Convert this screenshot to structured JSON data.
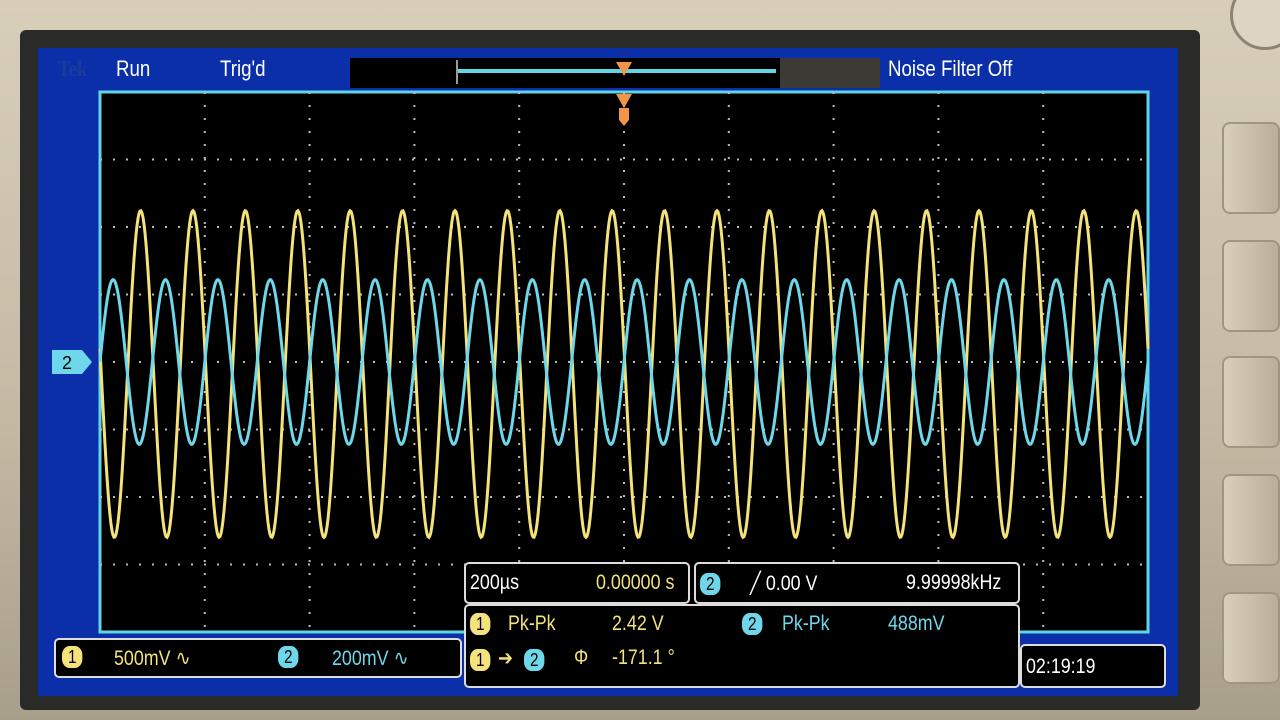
{
  "status": {
    "brand": "Tek",
    "run_state": "Run",
    "trigger_state": "Trig'd",
    "noise_filter": "Noise Filter Off"
  },
  "timebase": {
    "scale": "200µs",
    "position": "0.00000 s"
  },
  "trigger": {
    "source": "2",
    "slope_icon": "rising-edge-icon",
    "level": "0.00 V",
    "frequency": "9.99998kHz"
  },
  "channels": [
    {
      "id": "1",
      "scale": "500mV",
      "coupling_icon": "ac-coupling-icon",
      "color": "#f4e27a"
    },
    {
      "id": "2",
      "scale": "200mV",
      "coupling_icon": "ac-coupling-icon",
      "color": "#6fd7ea"
    }
  ],
  "measurements": {
    "ch1_label": "Pk-Pk",
    "ch1_value": "2.42 V",
    "ch2_label": "Pk-Pk",
    "ch2_value": "488mV",
    "phase_from": "1",
    "phase_to": "2",
    "phase_symbol": "Φ",
    "phase_value": "-171.1 °"
  },
  "clock": "02:19:19",
  "ground_marker": "2",
  "chart_data": {
    "type": "line",
    "grid": true,
    "x_divisions": 10,
    "y_divisions": 8,
    "time_per_div_s": 0.0002,
    "series": [
      {
        "name": "1",
        "frequency_hz": 10000,
        "pk_pk_v": 2.42,
        "volts_per_div": 0.5,
        "phase_deg": 171.1,
        "color": "#f4e27a"
      },
      {
        "name": "2",
        "frequency_hz": 10000,
        "pk_pk_v": 0.488,
        "volts_per_div": 0.2,
        "phase_deg": 0,
        "color": "#6fd7ea"
      }
    ]
  }
}
